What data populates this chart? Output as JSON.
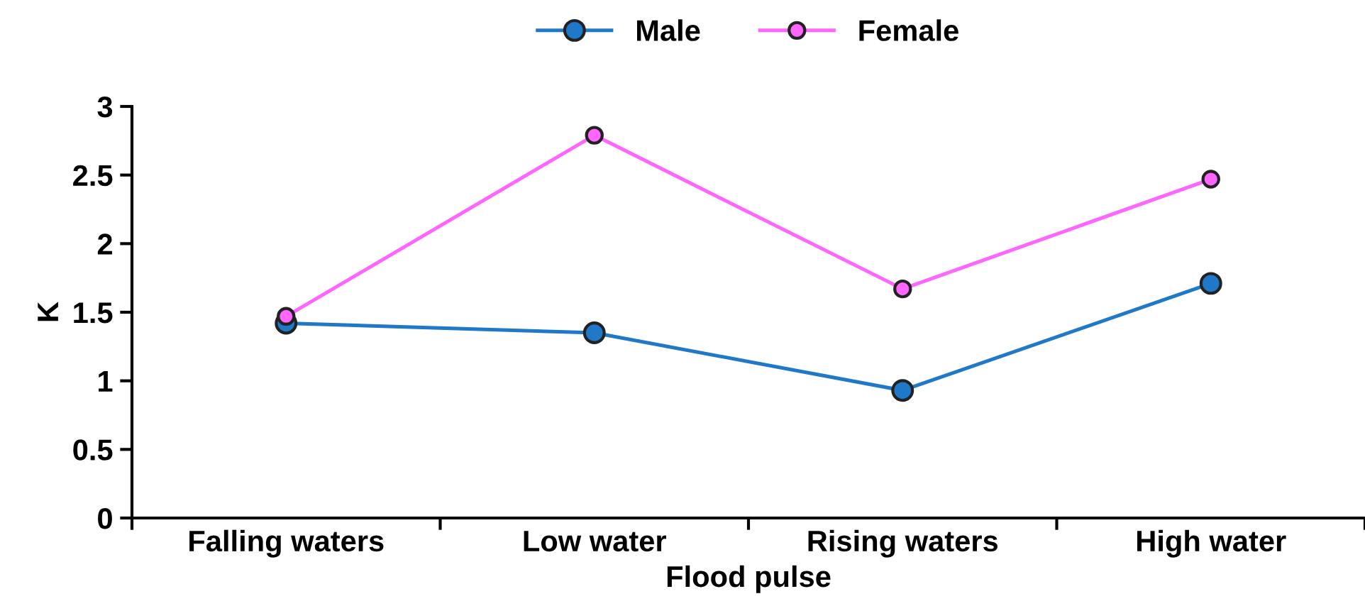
{
  "chart_data": {
    "type": "line",
    "xlabel": "Flood pulse",
    "ylabel": "K",
    "categories": [
      "Falling waters",
      "Low water",
      "Rising waters",
      "High water"
    ],
    "series": [
      {
        "name": "Male",
        "color": "#1f78c8",
        "values": [
          1.42,
          1.35,
          0.93,
          1.71
        ]
      },
      {
        "name": "Female",
        "color": "#ff66ff",
        "values": [
          1.47,
          2.79,
          1.67,
          2.47
        ]
      }
    ],
    "ylim": [
      0,
      3
    ],
    "yticks": [
      0,
      0.5,
      1,
      1.5,
      2,
      2.5,
      3
    ],
    "grid": false,
    "legend": "top",
    "marker": "circle",
    "line_style": "solid"
  }
}
